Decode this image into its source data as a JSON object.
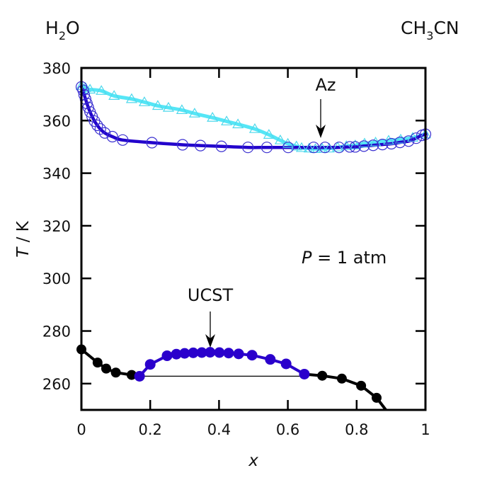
{
  "chart_data": {
    "type": "scatter",
    "title": "",
    "xlabel": "x",
    "ylabel": "T / K",
    "xlim": [
      0,
      1
    ],
    "ylim": [
      250,
      380
    ],
    "xticks": [
      0,
      0.2,
      0.4,
      0.6,
      0.8,
      1
    ],
    "xtick_labels": [
      "0",
      "0.2",
      "0.4",
      "0.6",
      "0.8",
      "1"
    ],
    "yticks": [
      260,
      280,
      300,
      320,
      340,
      360,
      380
    ],
    "ytick_labels": [
      "260",
      "280",
      "300",
      "320",
      "340",
      "360",
      "380"
    ],
    "grid": false,
    "legend": "none",
    "component_left": {
      "main": "H",
      "sub": "2",
      "rest": "O"
    },
    "component_right": {
      "main": "CH",
      "sub": "3",
      "rest": "CN"
    },
    "annotations": {
      "azeotrope": {
        "label": "Az",
        "x": 0.7,
        "T": 349.5
      },
      "ucst": {
        "label": "UCST",
        "x": 0.372,
        "T": 272
      },
      "pressure": {
        "italic": "P",
        "rest": " = 1 atm"
      }
    },
    "colors": {
      "bubble": "#2200cc",
      "bubble_marker": "#3a2fd0",
      "dew": "#55e6f6",
      "dew_marker": "#4fd8ec",
      "freezing": "#000000",
      "ucst": "#2a00cc",
      "tieline": "#000000"
    },
    "series": [
      {
        "name": "bubble-point (circles, dark blue)",
        "marker": "circle-open",
        "points": [
          [
            0.0,
            372.8
          ],
          [
            0.005,
            371.5
          ],
          [
            0.008,
            369.8
          ],
          [
            0.012,
            368.2
          ],
          [
            0.016,
            366.5
          ],
          [
            0.02,
            365.0
          ],
          [
            0.025,
            363.3
          ],
          [
            0.031,
            361.6
          ],
          [
            0.038,
            359.8
          ],
          [
            0.046,
            358.2
          ],
          [
            0.055,
            356.8
          ],
          [
            0.068,
            355.3
          ],
          [
            0.09,
            353.9
          ],
          [
            0.12,
            352.6
          ],
          [
            0.205,
            351.6
          ],
          [
            0.294,
            350.8
          ],
          [
            0.346,
            350.5
          ],
          [
            0.407,
            350.2
          ],
          [
            0.484,
            349.8
          ],
          [
            0.539,
            349.8
          ],
          [
            0.601,
            349.8
          ],
          [
            0.675,
            349.8
          ],
          [
            0.708,
            349.8
          ],
          [
            0.749,
            349.8
          ],
          [
            0.78,
            350.0
          ],
          [
            0.796,
            350.0
          ],
          [
            0.821,
            350.3
          ],
          [
            0.848,
            350.6
          ],
          [
            0.875,
            350.9
          ],
          [
            0.901,
            351.2
          ],
          [
            0.926,
            351.7
          ],
          [
            0.951,
            352.2
          ],
          [
            0.973,
            353.3
          ],
          [
            0.99,
            354.4
          ],
          [
            1.0,
            354.8
          ]
        ]
      },
      {
        "name": "dew-point (triangles, cyan)",
        "marker": "triangle-open",
        "points": [
          [
            0.0,
            373.2
          ],
          [
            0.012,
            372.4
          ],
          [
            0.025,
            371.8
          ],
          [
            0.058,
            371.3
          ],
          [
            0.095,
            369.4
          ],
          [
            0.146,
            368.2
          ],
          [
            0.183,
            367.0
          ],
          [
            0.222,
            365.6
          ],
          [
            0.253,
            364.9
          ],
          [
            0.292,
            364.0
          ],
          [
            0.329,
            362.7
          ],
          [
            0.381,
            361.1
          ],
          [
            0.422,
            359.7
          ],
          [
            0.455,
            358.6
          ],
          [
            0.504,
            356.8
          ],
          [
            0.545,
            354.6
          ],
          [
            0.578,
            352.5
          ],
          [
            0.6,
            351.2
          ],
          [
            0.625,
            350.2
          ],
          [
            0.64,
            349.6
          ],
          [
            0.662,
            349.4
          ],
          [
            0.68,
            349.2
          ],
          [
            0.7,
            349.3
          ],
          [
            0.72,
            349.4
          ],
          [
            0.745,
            349.8
          ],
          [
            0.77,
            350.3
          ],
          [
            0.796,
            350.6
          ],
          [
            0.823,
            351.3
          ],
          [
            0.855,
            351.7
          ],
          [
            0.893,
            352.4
          ],
          [
            0.928,
            352.8
          ],
          [
            0.963,
            353.5
          ],
          [
            1.0,
            354.8
          ]
        ]
      },
      {
        "name": "freezing curve (black filled)",
        "marker": "circle-filled",
        "segments": [
          [
            [
              0.0,
              273.0
            ],
            [
              0.047,
              268.0
            ],
            [
              0.072,
              265.7
            ],
            [
              0.1,
              264.2
            ],
            [
              0.146,
              263.3
            ],
            [
              0.169,
              262.8
            ]
          ],
          [
            [
              0.648,
              263.6
            ],
            [
              0.7,
              263.0
            ],
            [
              0.757,
              261.9
            ],
            [
              0.813,
              259.2
            ],
            [
              0.858,
              254.6
            ],
            [
              0.885,
              250.0
            ]
          ]
        ],
        "points": [
          [
            0.0,
            273.0
          ],
          [
            0.047,
            268.0
          ],
          [
            0.072,
            265.7
          ],
          [
            0.1,
            264.2
          ],
          [
            0.146,
            263.3
          ],
          [
            0.7,
            263.0
          ],
          [
            0.757,
            261.9
          ],
          [
            0.813,
            259.2
          ],
          [
            0.858,
            254.6
          ]
        ]
      },
      {
        "name": "liquid-liquid coexistence (blue filled)",
        "marker": "circle-filled",
        "points": [
          [
            0.169,
            262.8
          ],
          [
            0.2,
            267.3
          ],
          [
            0.249,
            270.6
          ],
          [
            0.276,
            271.2
          ],
          [
            0.3,
            271.5
          ],
          [
            0.325,
            271.7
          ],
          [
            0.35,
            271.8
          ],
          [
            0.374,
            271.9
          ],
          [
            0.401,
            271.8
          ],
          [
            0.428,
            271.6
          ],
          [
            0.457,
            271.3
          ],
          [
            0.496,
            270.8
          ],
          [
            0.549,
            269.2
          ],
          [
            0.595,
            267.5
          ],
          [
            0.648,
            263.6
          ]
        ]
      },
      {
        "name": "tie line",
        "marker": "none",
        "points": [
          [
            0.169,
            262.8
          ],
          [
            0.648,
            262.8
          ]
        ]
      }
    ]
  }
}
